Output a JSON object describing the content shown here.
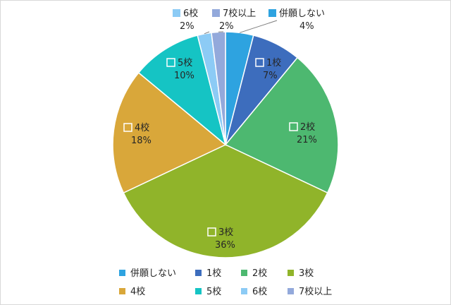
{
  "chart_data": {
    "type": "pie",
    "title": "",
    "slices": [
      {
        "name": "併願しない",
        "value": 4,
        "label": "4%",
        "color": "#2EA3E0"
      },
      {
        "name": "1校",
        "value": 7,
        "label": "7%",
        "color": "#3D6DBD"
      },
      {
        "name": "2校",
        "value": 21,
        "label": "21%",
        "color": "#4DB870"
      },
      {
        "name": "3校",
        "value": 36,
        "label": "36%",
        "color": "#90B42A"
      },
      {
        "name": "4校",
        "value": 18,
        "label": "18%",
        "color": "#D9A73A"
      },
      {
        "name": "5校",
        "value": 10,
        "label": "10%",
        "color": "#15C4C4"
      },
      {
        "name": "6校",
        "value": 2,
        "label": "2%",
        "color": "#8CCBF5"
      },
      {
        "name": "7校以上",
        "value": 2,
        "label": "2%",
        "color": "#93A9DB"
      }
    ],
    "legend": {
      "position": "bottom",
      "items": [
        "併願しない",
        "1校",
        "2校",
        "3校",
        "4校",
        "5校",
        "6校",
        "7校以上"
      ]
    }
  }
}
